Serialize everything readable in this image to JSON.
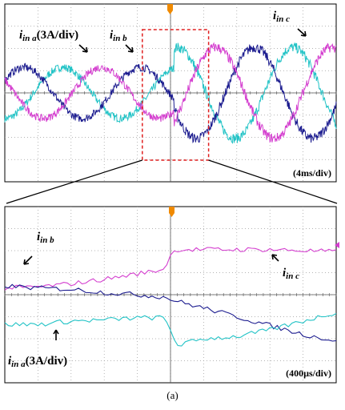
{
  "figure": {
    "caption": "(a)",
    "top_panel": {
      "timescale": "(4ms/div)",
      "labels": {
        "ia_main": "i",
        "ia_sub": "in a",
        "ia_scale": "(3A/div)",
        "ib_main": "i",
        "ib_sub": "in b",
        "ic_main": "i",
        "ic_sub": "in c"
      }
    },
    "bottom_panel": {
      "timescale": "(400µs/div)",
      "labels": {
        "ib_main": "i",
        "ib_sub": "in b",
        "ic_main": "i",
        "ic_sub": "in c",
        "ia_main": "i",
        "ia_sub": "in a",
        "ia_scale": "(3A/div)"
      }
    }
  },
  "colors": {
    "phase_a": "#22c3c6",
    "phase_b": "#1c1c8f",
    "phase_c": "#d43fcf",
    "grid": "#9a9a9a",
    "zoom_box": "#e02020",
    "trigger": "#f08a00"
  },
  "chart_data": [
    {
      "type": "line",
      "panel": "top",
      "x_unit": "div",
      "xlim": [
        0,
        10
      ],
      "ylim": [
        -4,
        4
      ],
      "grid": true,
      "series": [
        {
          "color_key": "phase_a",
          "before": {
            "amp": 1.15,
            "phase_deg": -90
          },
          "after": {
            "amp": 2.05,
            "phase_deg": -85
          }
        },
        {
          "color_key": "phase_b",
          "before": {
            "amp": 1.15,
            "phase_deg": 30
          },
          "after": {
            "amp": 2.05,
            "phase_deg": 35
          }
        },
        {
          "color_key": "phase_c",
          "before": {
            "amp": 1.15,
            "phase_deg": 150
          },
          "after": {
            "amp": 2.05,
            "phase_deg": 155
          }
        }
      ],
      "period_div": 3.5,
      "step_at_div": 5.1,
      "zoom_window_div": [
        4.15,
        6.15
      ]
    },
    {
      "type": "line",
      "panel": "bottom",
      "x_unit": "div",
      "xlim": [
        0,
        10
      ],
      "ylim": [
        -4,
        4
      ],
      "grid": true,
      "step_at_div": 5.0,
      "series": [
        {
          "color_key": "phase_c",
          "x": [
            0,
            1,
            2,
            3,
            4,
            4.8,
            5.0,
            5.2,
            6,
            7,
            8,
            9,
            10
          ],
          "y": [
            0.3,
            0.35,
            0.5,
            0.7,
            0.95,
            1.15,
            1.8,
            2.05,
            2.05,
            2.05,
            2.05,
            2.0,
            1.95
          ]
        },
        {
          "color_key": "phase_b",
          "x": [
            0,
            1,
            2,
            3,
            4,
            4.8,
            5.0,
            5.2,
            6,
            7,
            8,
            9,
            10
          ],
          "y": [
            0.4,
            0.3,
            0.25,
            0.1,
            0.0,
            -0.1,
            -0.2,
            -0.3,
            -0.6,
            -1.0,
            -1.4,
            -1.8,
            -2.1
          ]
        },
        {
          "color_key": "phase_a",
          "x": [
            0,
            1,
            2,
            3,
            4,
            4.8,
            5.0,
            5.2,
            6,
            7,
            8,
            9,
            10
          ],
          "y": [
            -1.35,
            -1.35,
            -1.2,
            -1.15,
            -1.05,
            -1.05,
            -1.6,
            -2.3,
            -2.0,
            -1.9,
            -1.6,
            -1.2,
            -0.8
          ]
        }
      ]
    }
  ]
}
